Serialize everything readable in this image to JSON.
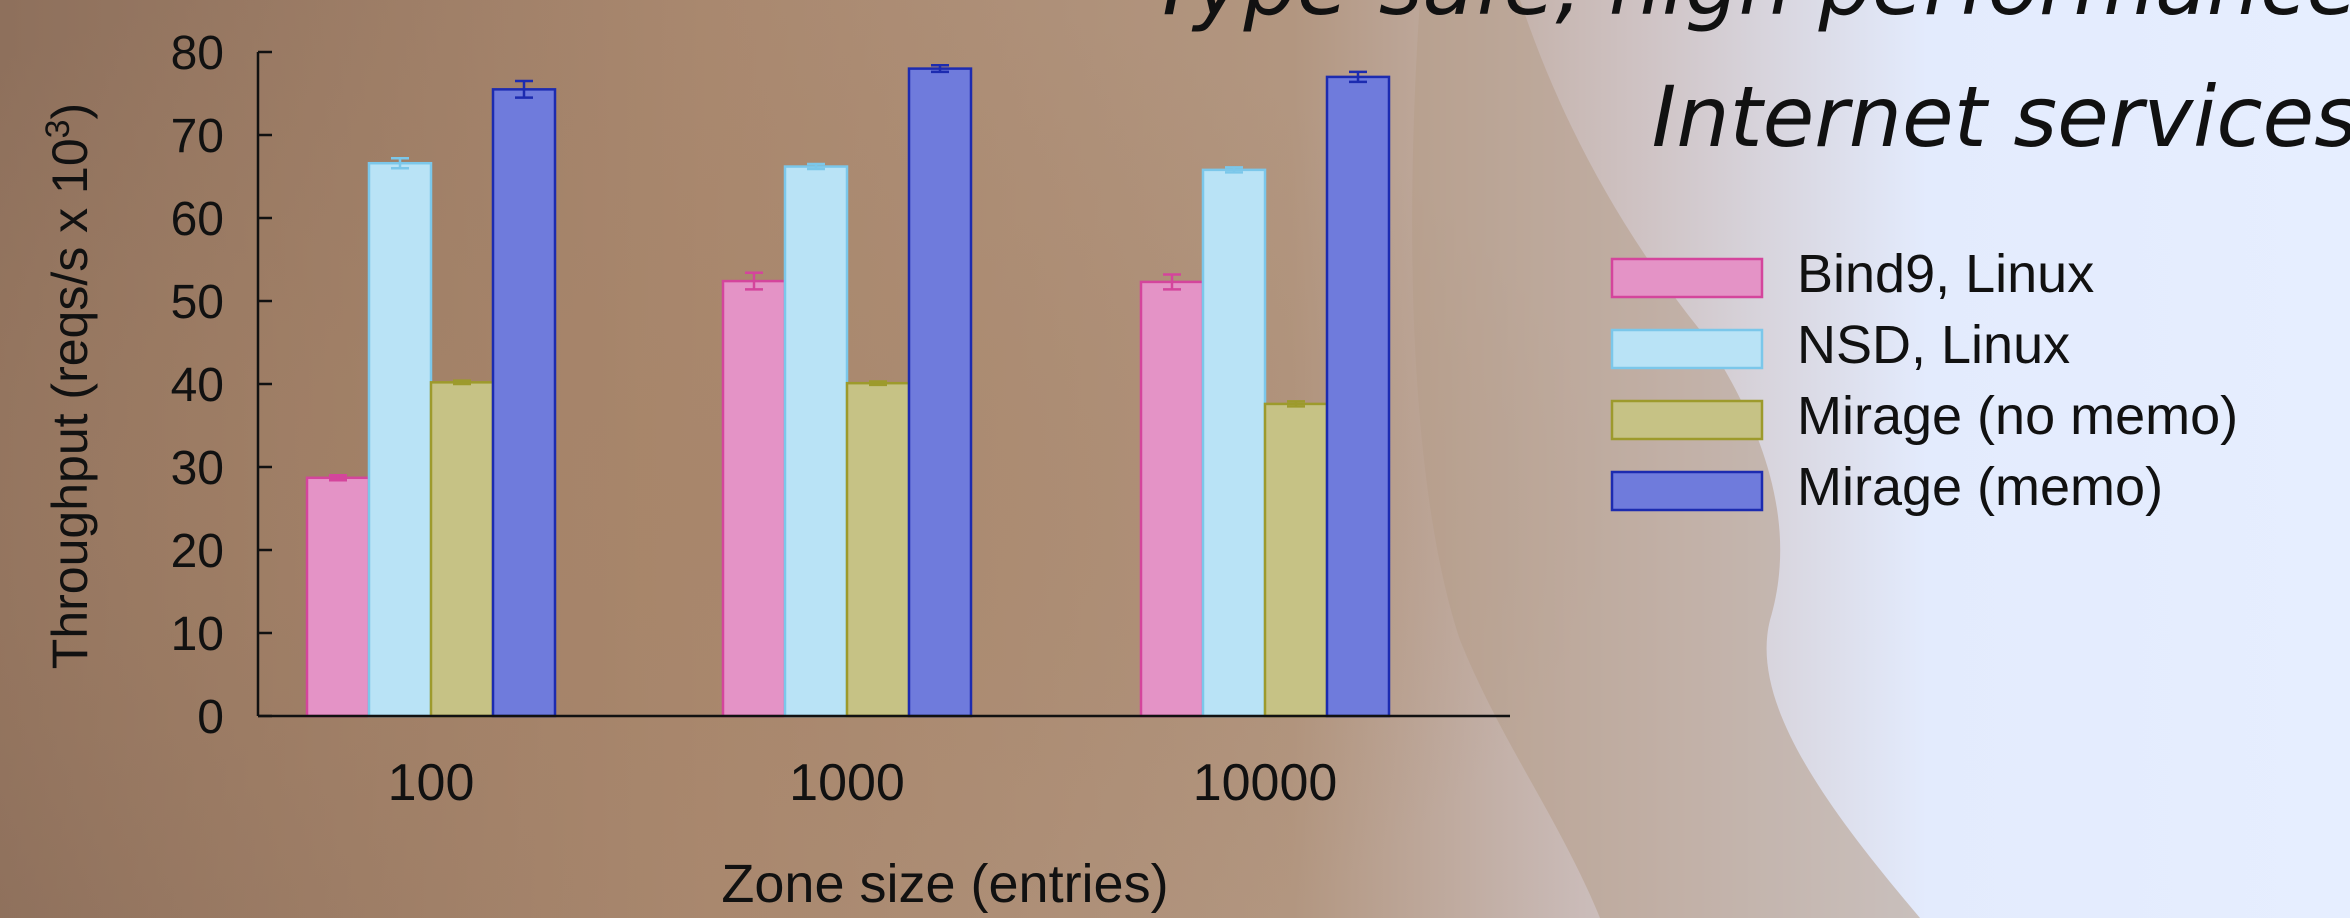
{
  "slide": {
    "title_line_1": "Type-safe, high performance",
    "title_line_2": "Internet services"
  },
  "colors": {
    "background_left": "#9c7c66",
    "background_right": "#e8efff",
    "axis": "#111111",
    "text": "#111111"
  },
  "chart_data": {
    "type": "bar",
    "title": "",
    "xlabel": "Zone size (entries)",
    "ylabel": "Throughput (reqs/s x 10",
    "ylabel_superscript": "3",
    "ylabel_close": ")",
    "ylim": [
      0,
      80
    ],
    "yticks": [
      0,
      10,
      20,
      30,
      40,
      50,
      60,
      70,
      80
    ],
    "grid": false,
    "legend_position": "right",
    "categories": [
      "100",
      "1000",
      "10000"
    ],
    "series": [
      {
        "name": "Bind9, Linux",
        "values": [
          28.7,
          52.4,
          52.3
        ],
        "errors": [
          0.3,
          1.0,
          0.9
        ],
        "fill": "#e493c6",
        "stroke": "#d4459c"
      },
      {
        "name": "NSD, Linux",
        "values": [
          66.6,
          66.2,
          65.8
        ],
        "errors": [
          0.6,
          0.3,
          0.3
        ],
        "fill": "#b9e3f6",
        "stroke": "#7bc7ea"
      },
      {
        "name": "Mirage (no memo)",
        "values": [
          40.2,
          40.1,
          37.6
        ],
        "errors": [
          0.2,
          0.2,
          0.3
        ],
        "fill": "#c6c285",
        "stroke": "#9d9a2c"
      },
      {
        "name": "Mirage (memo)",
        "values": [
          75.5,
          78.0,
          77.0
        ],
        "errors": [
          1.0,
          0.4,
          0.6
        ],
        "fill": "#6f7bdc",
        "stroke": "#1c2bb0"
      }
    ]
  }
}
